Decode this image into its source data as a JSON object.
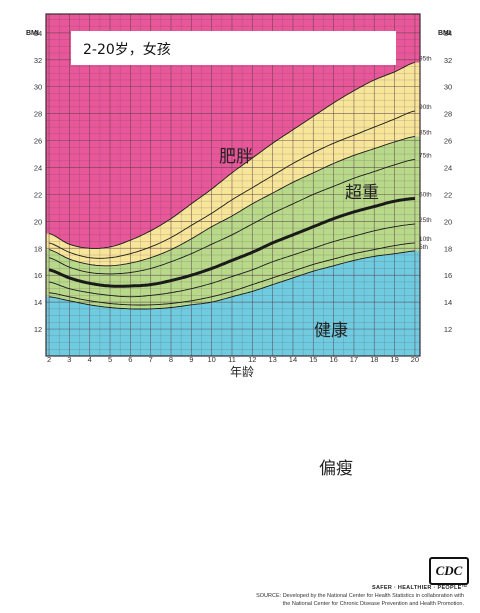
{
  "title": "2-20岁，女孩",
  "y_axis_label": "BMI",
  "x_axis_label": "年龄",
  "zones": {
    "obese": "肥胖",
    "overweight": "超重",
    "healthy": "健康",
    "underweight": "偏瘦"
  },
  "colors": {
    "obese": "#e8579a",
    "overweight": "#f7e59a",
    "healthy": "#b8d98a",
    "underweight": "#6fcbe0",
    "grid": "#5a3f4a",
    "curve": "#1a1a1a"
  },
  "footer": {
    "logo_text": "CDC",
    "tagline": "SAFER · HEALTHIER · PEOPLE™",
    "source_line1": "SOURCE: Developed by the National Center for Health Statistics in collaboration with",
    "source_line2": "the National Center for Chronic Disease Prevention and Health Promotion."
  },
  "chart_data": {
    "type": "line",
    "xlabel": "年龄",
    "ylabel": "BMI",
    "xlim": [
      2,
      20
    ],
    "ylim": [
      10,
      35.4
    ],
    "x_ticks": [
      2,
      3,
      4,
      5,
      6,
      7,
      8,
      9,
      10,
      11,
      12,
      13,
      14,
      15,
      16,
      17,
      18,
      19,
      20
    ],
    "y_ticks": [
      12,
      14,
      16,
      18,
      20,
      22,
      24,
      26,
      28,
      30,
      32,
      34
    ],
    "grid": true,
    "x": [
      2,
      3,
      4,
      5,
      6,
      7,
      8,
      9,
      10,
      11,
      12,
      13,
      14,
      15,
      16,
      17,
      18,
      19,
      20
    ],
    "series": [
      {
        "name": "5th",
        "values": [
          14.4,
          14.1,
          13.8,
          13.6,
          13.5,
          13.5,
          13.6,
          13.8,
          14.0,
          14.4,
          14.8,
          15.3,
          15.8,
          16.3,
          16.7,
          17.1,
          17.4,
          17.6,
          17.8
        ]
      },
      {
        "name": "10th",
        "values": [
          14.7,
          14.4,
          14.1,
          13.9,
          13.8,
          13.8,
          13.9,
          14.1,
          14.4,
          14.8,
          15.3,
          15.8,
          16.3,
          16.8,
          17.2,
          17.6,
          17.9,
          18.2,
          18.4
        ]
      },
      {
        "name": "25th",
        "values": [
          15.5,
          15.0,
          14.7,
          14.5,
          14.4,
          14.5,
          14.7,
          15.0,
          15.4,
          15.9,
          16.4,
          17.0,
          17.5,
          18.0,
          18.5,
          18.9,
          19.3,
          19.6,
          19.8
        ]
      },
      {
        "name": "50th",
        "values": [
          16.4,
          15.8,
          15.4,
          15.2,
          15.2,
          15.3,
          15.6,
          16.0,
          16.5,
          17.1,
          17.7,
          18.4,
          19.0,
          19.6,
          20.2,
          20.7,
          21.1,
          21.5,
          21.7
        ]
      },
      {
        "name": "75th",
        "values": [
          17.3,
          16.6,
          16.2,
          16.1,
          16.2,
          16.5,
          17.0,
          17.6,
          18.3,
          19.0,
          19.8,
          20.6,
          21.3,
          22.0,
          22.6,
          23.2,
          23.7,
          24.2,
          24.6
        ]
      },
      {
        "name": "85th",
        "values": [
          17.9,
          17.2,
          16.8,
          16.7,
          16.9,
          17.3,
          17.9,
          18.7,
          19.6,
          20.4,
          21.3,
          22.1,
          22.9,
          23.6,
          24.3,
          24.9,
          25.4,
          25.9,
          26.3
        ]
      },
      {
        "name": "90th",
        "values": [
          18.4,
          17.7,
          17.3,
          17.3,
          17.6,
          18.1,
          18.8,
          19.7,
          20.6,
          21.6,
          22.5,
          23.4,
          24.3,
          25.1,
          25.8,
          26.4,
          27.0,
          27.6,
          28.2
        ]
      },
      {
        "name": "95th",
        "values": [
          19.1,
          18.3,
          18.0,
          18.1,
          18.6,
          19.3,
          20.2,
          21.3,
          22.4,
          23.6,
          24.7,
          25.8,
          26.8,
          27.8,
          28.8,
          29.7,
          30.5,
          31.1,
          31.8
        ]
      }
    ]
  }
}
